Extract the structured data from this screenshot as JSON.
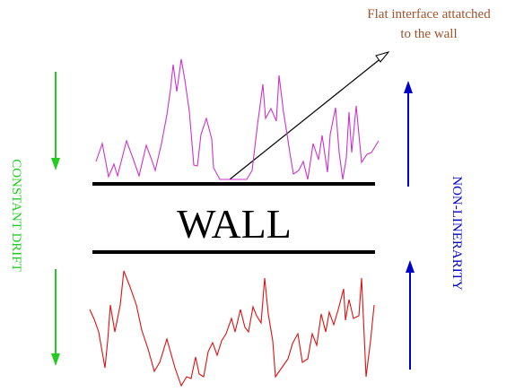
{
  "annotation": {
    "line1": "Flat interface attatched",
    "line2": "to the wall"
  },
  "wall_label": "WALL",
  "left_label": "CONSTANT DRIFT",
  "right_label": "NON-LINERARITY",
  "colors": {
    "annotation_text": "#a0522d",
    "drift": "#22cc22",
    "nonlinearity": "#0000cc",
    "upper_interface": "#cc33cc",
    "lower_interface": "#dd1111",
    "wall": "#000000",
    "pointer": "#000000"
  }
}
